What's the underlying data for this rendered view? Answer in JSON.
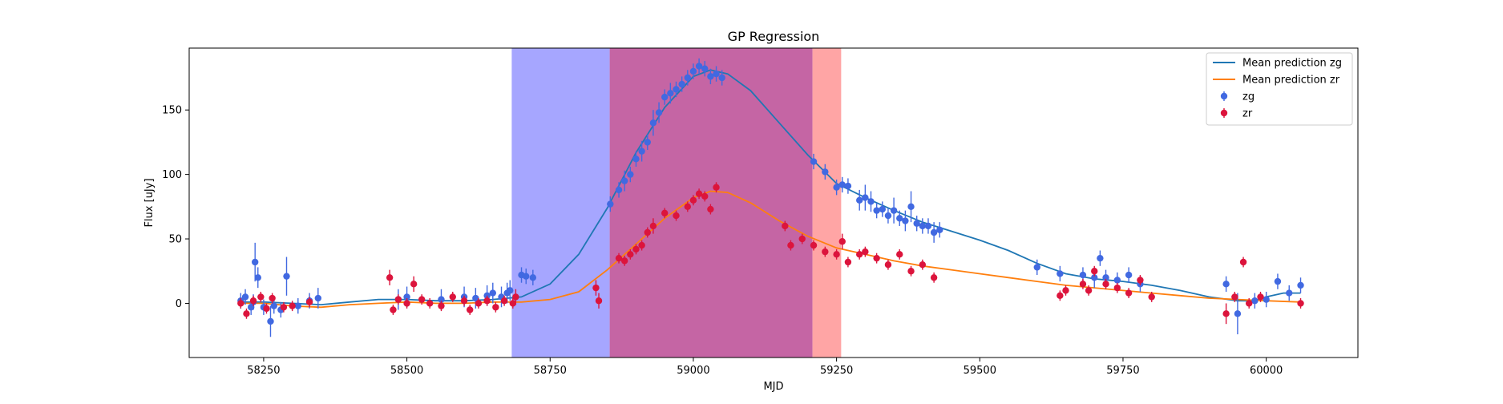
{
  "chart_data": {
    "type": "scatter",
    "title": "GP Regression",
    "xlabel": "MJD",
    "ylabel": "Flux [uJy]",
    "xlim": [
      58120,
      60160
    ],
    "ylim": [
      -42,
      198
    ],
    "xticks": [
      58250,
      58500,
      58750,
      59000,
      59250,
      59500,
      59750,
      60000
    ],
    "yticks": [
      0,
      50,
      100,
      150
    ],
    "grid": false,
    "legend_position": "top-right",
    "shaded_regions": [
      {
        "x0": 58683,
        "x1": 58854,
        "color": "#a6a6ff"
      },
      {
        "x0": 58854,
        "x1": 59208,
        "color": "#c565a4"
      },
      {
        "x0": 59208,
        "x1": 59258,
        "color": "#ffa5a5"
      }
    ],
    "series": [
      {
        "name": "Mean prediction zg",
        "kind": "line",
        "color": "#1f77b4",
        "x": [
          58210,
          58250,
          58300,
          58350,
          58400,
          58450,
          58500,
          58550,
          58600,
          58650,
          58700,
          58750,
          58800,
          58850,
          58900,
          58950,
          59000,
          59030,
          59060,
          59100,
          59150,
          59200,
          59250,
          59300,
          59350,
          59400,
          59450,
          59500,
          59550,
          59600,
          59650,
          59700,
          59750,
          59800,
          59850,
          59900,
          59950,
          59980,
          60000,
          60030,
          60060
        ],
        "y": [
          1,
          1,
          0,
          -1,
          1,
          3,
          3,
          2,
          2,
          3,
          5,
          15,
          38,
          74,
          117,
          152,
          176,
          181,
          178,
          165,
          140,
          115,
          93,
          82,
          72,
          63,
          56,
          49,
          41,
          31,
          23,
          19,
          17,
          14,
          10,
          5,
          2,
          2,
          5,
          8,
          8
        ]
      },
      {
        "name": "Mean prediction zr",
        "kind": "line",
        "color": "#ff7f0e",
        "x": [
          58210,
          58250,
          58300,
          58350,
          58400,
          58450,
          58500,
          58550,
          58600,
          58650,
          58700,
          58750,
          58800,
          58850,
          58900,
          58950,
          59000,
          59030,
          59060,
          59100,
          59150,
          59200,
          59250,
          59300,
          59350,
          59400,
          59450,
          59500,
          59550,
          59600,
          59650,
          59700,
          59750,
          59800,
          59850,
          59900,
          59950,
          60000,
          60060
        ],
        "y": [
          0,
          0,
          -2,
          -3,
          -1,
          0,
          1,
          0,
          0,
          1,
          1,
          3,
          9,
          26,
          46,
          66,
          82,
          87,
          86,
          78,
          64,
          52,
          43,
          38,
          33,
          29,
          26,
          23,
          20,
          17,
          14,
          12,
          10,
          8,
          6,
          4,
          3,
          2,
          1
        ]
      },
      {
        "name": "zg",
        "kind": "errorbar",
        "color": "#4169e1",
        "x": [
          58210,
          58218,
          58228,
          58232,
          58235,
          58240,
          58250,
          58262,
          58268,
          58280,
          58290,
          58310,
          58330,
          58345,
          58485,
          58500,
          58560,
          58600,
          58620,
          58640,
          58650,
          58665,
          58675,
          58680,
          58700,
          58708,
          58720,
          58855,
          58870,
          58880,
          58890,
          58900,
          58910,
          58920,
          58930,
          58940,
          58950,
          58960,
          58970,
          58980,
          58990,
          59000,
          59010,
          59020,
          59030,
          59040,
          59050,
          59210,
          59230,
          59250,
          59260,
          59270,
          59290,
          59300,
          59310,
          59320,
          59330,
          59340,
          59350,
          59360,
          59370,
          59380,
          59390,
          59400,
          59410,
          59420,
          59430,
          59600,
          59640,
          59680,
          59700,
          59710,
          59720,
          59740,
          59760,
          59780,
          59930,
          59950,
          59980,
          60000,
          60020,
          60040,
          60060
        ],
        "y": [
          2,
          5,
          -3,
          1,
          32,
          20,
          -3,
          -14,
          -2,
          -5,
          21,
          -2,
          2,
          4,
          3,
          5,
          3,
          5,
          4,
          6,
          8,
          5,
          8,
          10,
          22,
          21,
          20,
          77,
          88,
          95,
          100,
          112,
          118,
          125,
          140,
          148,
          160,
          163,
          166,
          170,
          175,
          180,
          184,
          182,
          176,
          178,
          175,
          110,
          102,
          90,
          92,
          91,
          80,
          82,
          79,
          72,
          73,
          68,
          72,
          66,
          64,
          75,
          62,
          60,
          60,
          55,
          57,
          28,
          23,
          22,
          20,
          35,
          20,
          18,
          22,
          15,
          15,
          -8,
          2,
          3,
          17,
          8,
          14
        ],
        "err": [
          6,
          6,
          6,
          6,
          15,
          8,
          6,
          12,
          6,
          6,
          15,
          6,
          6,
          8,
          8,
          8,
          8,
          8,
          8,
          8,
          8,
          8,
          8,
          8,
          6,
          6,
          6,
          6,
          6,
          8,
          6,
          6,
          8,
          6,
          10,
          8,
          6,
          8,
          6,
          6,
          6,
          6,
          6,
          6,
          6,
          6,
          6,
          6,
          6,
          6,
          6,
          6,
          8,
          10,
          8,
          6,
          6,
          6,
          10,
          6,
          8,
          12,
          6,
          6,
          6,
          8,
          6,
          6,
          6,
          6,
          8,
          6,
          6,
          6,
          6,
          6,
          6,
          16,
          6,
          6,
          6,
          6,
          6
        ]
      },
      {
        "name": "zr",
        "kind": "errorbar",
        "color": "#dc143c",
        "x": [
          58210,
          58220,
          58232,
          58245,
          58255,
          58265,
          58285,
          58300,
          58330,
          58470,
          58476,
          58485,
          58500,
          58512,
          58526,
          58540,
          58560,
          58580,
          58600,
          58610,
          58625,
          58640,
          58655,
          58670,
          58685,
          58690,
          58830,
          58835,
          58870,
          58880,
          58890,
          58900,
          58910,
          58920,
          58930,
          58950,
          58970,
          58990,
          59000,
          59010,
          59020,
          59030,
          59040,
          59160,
          59170,
          59190,
          59210,
          59230,
          59250,
          59260,
          59270,
          59290,
          59300,
          59320,
          59340,
          59360,
          59380,
          59400,
          59420,
          59640,
          59650,
          59680,
          59690,
          59700,
          59720,
          59740,
          59760,
          59780,
          59800,
          59930,
          59945,
          59960,
          59970,
          59990,
          60060
        ],
        "y": [
          0,
          -8,
          2,
          5,
          -4,
          4,
          -3,
          -2,
          1,
          20,
          -5,
          3,
          0,
          15,
          3,
          0,
          -2,
          5,
          2,
          -5,
          0,
          2,
          -3,
          2,
          0,
          5,
          12,
          2,
          35,
          33,
          38,
          42,
          45,
          55,
          60,
          70,
          68,
          75,
          80,
          85,
          83,
          73,
          90,
          60,
          45,
          50,
          45,
          40,
          38,
          48,
          32,
          38,
          40,
          35,
          30,
          38,
          25,
          30,
          20,
          6,
          10,
          15,
          10,
          25,
          15,
          12,
          8,
          18,
          5,
          -8,
          5,
          32,
          0,
          5,
          0
        ],
        "err": [
          4,
          4,
          4,
          4,
          4,
          4,
          4,
          4,
          4,
          6,
          4,
          4,
          4,
          6,
          4,
          4,
          4,
          4,
          4,
          4,
          4,
          4,
          4,
          4,
          4,
          6,
          6,
          6,
          4,
          4,
          4,
          4,
          4,
          4,
          6,
          4,
          4,
          4,
          4,
          4,
          4,
          4,
          4,
          4,
          4,
          4,
          4,
          4,
          4,
          6,
          4,
          4,
          4,
          4,
          4,
          4,
          4,
          4,
          4,
          4,
          4,
          4,
          4,
          4,
          4,
          4,
          4,
          4,
          4,
          8,
          4,
          4,
          4,
          4,
          4
        ]
      }
    ]
  }
}
